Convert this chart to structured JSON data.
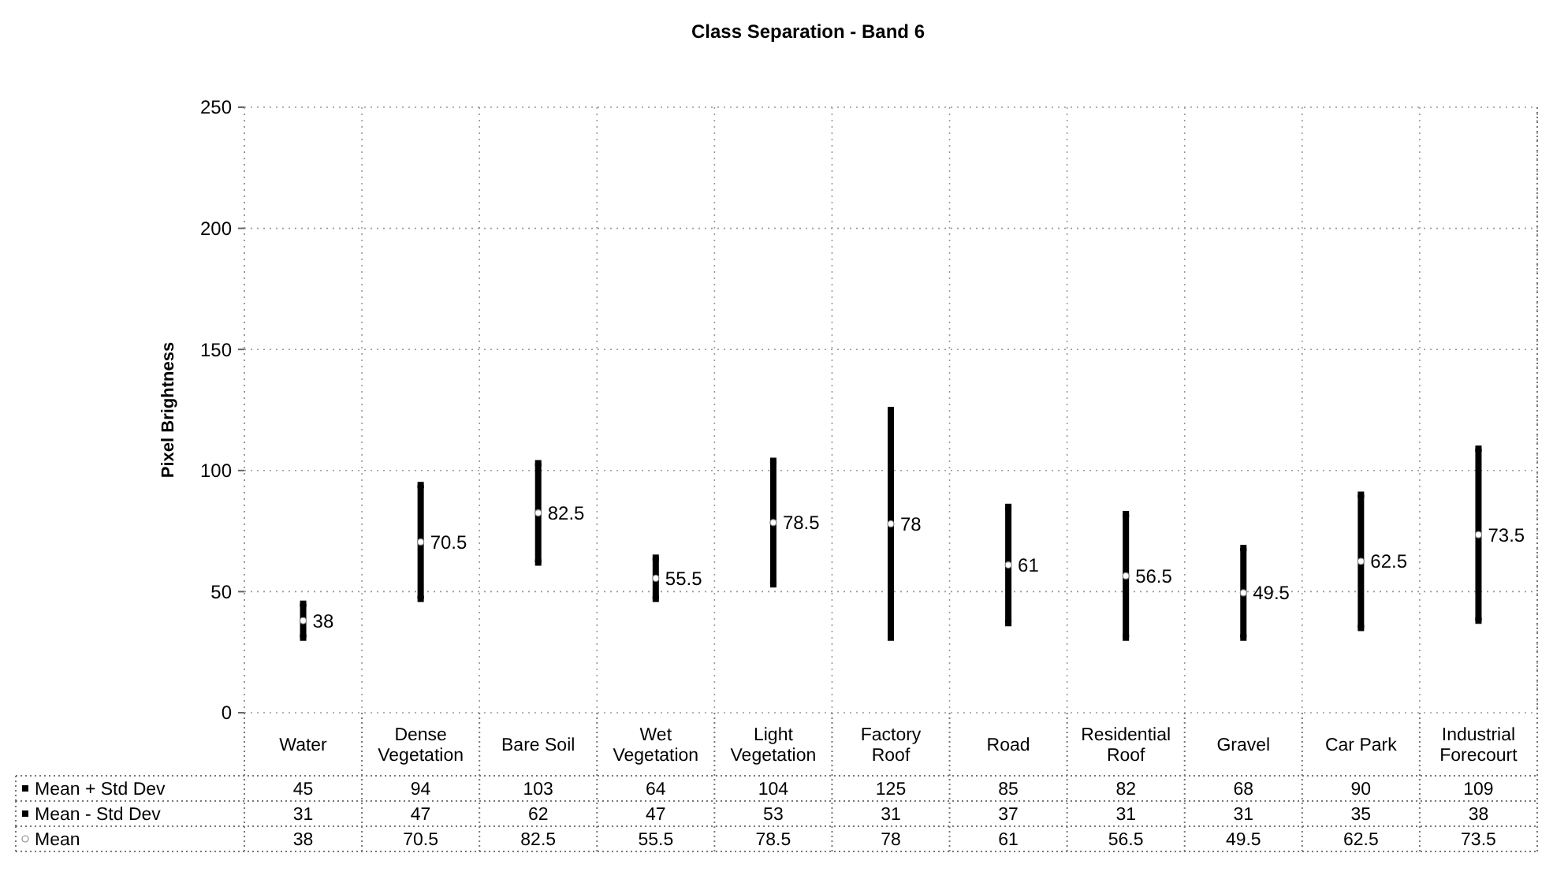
{
  "chart_data": {
    "type": "scatter",
    "title": "Class Separation - Band 6",
    "ylabel": "Pixel Brightness",
    "categories": [
      "Water",
      "Dense Vegetation",
      "Bare Soil",
      "Wet Vegetation",
      "Light Vegetation",
      "Factory Roof",
      "Road",
      "Residential Roof",
      "Gravel",
      "Car Park",
      "Industrial Forecourt"
    ],
    "series": [
      {
        "name": "Mean + Std Dev",
        "color": "#000000",
        "marker": "square",
        "values": [
          45,
          94,
          103,
          64,
          104,
          125,
          85,
          82,
          68,
          90,
          109
        ]
      },
      {
        "name": "Mean - Std Dev",
        "color": "#000000",
        "marker": "square",
        "values": [
          31,
          47,
          62,
          47,
          53,
          31,
          37,
          31,
          31,
          35,
          38
        ]
      },
      {
        "name": "Mean",
        "color": "#ffffff",
        "marker": "circle",
        "values": [
          38,
          70.5,
          82.5,
          55.5,
          78.5,
          78,
          61,
          56.5,
          49.5,
          62.5,
          73.5
        ]
      }
    ],
    "annotations": [
      {
        "text": "38",
        "x": "Water",
        "y": 38
      },
      {
        "text": "70.5",
        "x": "Dense Vegetation",
        "y": 70.5
      },
      {
        "text": "82.5",
        "x": "Bare Soil",
        "y": 82.5
      },
      {
        "text": "55.5",
        "x": "Wet Vegetation",
        "y": 55.5
      },
      {
        "text": "78.5",
        "x": "Light Vegetation",
        "y": 78.5
      },
      {
        "text": "78",
        "x": "Factory Roof",
        "y": 78
      },
      {
        "text": "61",
        "x": "Road",
        "y": 61
      },
      {
        "text": "56.5",
        "x": "Residential Roof",
        "y": 56.5
      },
      {
        "text": "49.5",
        "x": "Gravel",
        "y": 49.5
      },
      {
        "text": "62.5",
        "x": "Car Park",
        "y": 62.5
      },
      {
        "text": "73.5",
        "x": "Industrial Forecourt",
        "y": 73.5
      }
    ],
    "ylim": [
      0,
      250
    ],
    "yticks": [
      0,
      50,
      100,
      150,
      200,
      250
    ],
    "grid": true,
    "data_labels": true,
    "legend": "bottom"
  }
}
